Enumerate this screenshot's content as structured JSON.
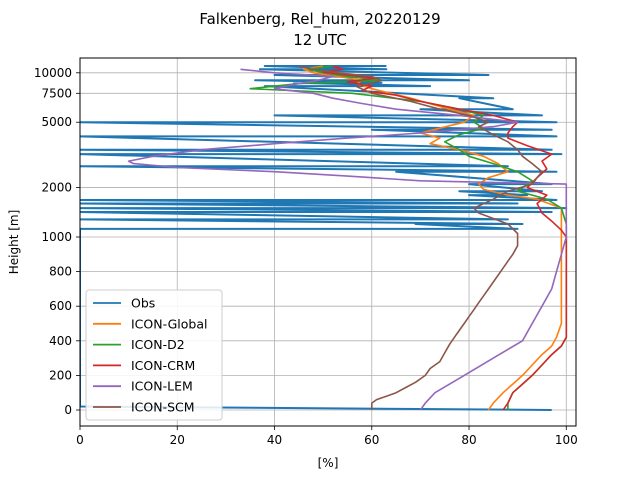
{
  "chart_data": {
    "type": "line",
    "title_line1": "Falkenberg, Rel_hum, 20220129",
    "title_line2": "12 UTC",
    "xlabel": "[%]",
    "ylabel": "Height [m]",
    "xlim": [
      0,
      102
    ],
    "x_ticks": [
      0,
      20,
      40,
      60,
      80,
      100
    ],
    "y_ticks_linear": [
      0,
      200,
      400,
      600,
      800,
      1000
    ],
    "y_ticks_upper": [
      2000,
      5000,
      7500,
      10000
    ],
    "grid": true,
    "legend_position": "lower-left",
    "series": [
      {
        "name": "Obs",
        "color": "#1f77b4",
        "points": [
          [
            97,
            0
          ],
          [
            0,
            20
          ],
          [
            0,
            1120
          ],
          [
            90,
            1120
          ],
          [
            69,
            1200
          ],
          [
            91,
            1200
          ],
          [
            0,
            1280
          ],
          [
            88,
            1280
          ],
          [
            0,
            1420
          ],
          [
            97,
            1420
          ],
          [
            0,
            1500
          ],
          [
            100,
            1500
          ],
          [
            0,
            1600
          ],
          [
            90,
            1600
          ],
          [
            0,
            1680
          ],
          [
            98,
            1680
          ],
          [
            80,
            1800
          ],
          [
            92,
            1800
          ],
          [
            78,
            1900
          ],
          [
            95,
            1900
          ],
          [
            80,
            2100
          ],
          [
            97,
            2100
          ],
          [
            65,
            2500
          ],
          [
            98,
            2500
          ],
          [
            0,
            2700
          ],
          [
            88,
            2700
          ],
          [
            0,
            3200
          ],
          [
            99,
            3200
          ],
          [
            0,
            3400
          ],
          [
            97,
            3400
          ],
          [
            0,
            4100
          ],
          [
            98,
            4100
          ],
          [
            60,
            4500
          ],
          [
            97,
            4500
          ],
          [
            0,
            5000
          ],
          [
            98,
            5000
          ],
          [
            40,
            5500
          ],
          [
            95,
            5500
          ],
          [
            70,
            6000
          ],
          [
            89,
            6000
          ],
          [
            78,
            7000
          ],
          [
            85,
            7000
          ],
          [
            38,
            8300
          ],
          [
            72,
            8300
          ],
          [
            44,
            8700
          ],
          [
            62,
            8700
          ],
          [
            36,
            9000
          ],
          [
            80,
            9000
          ],
          [
            40,
            9700
          ],
          [
            84,
            9700
          ],
          [
            37,
            10500
          ],
          [
            63,
            10500
          ],
          [
            38,
            11000
          ],
          [
            63,
            11000
          ]
        ]
      },
      {
        "name": "ICON-Global",
        "color": "#ff7f0e",
        "points": [
          [
            84,
            0
          ],
          [
            85,
            40
          ],
          [
            87,
            100
          ],
          [
            89,
            150
          ],
          [
            91,
            200
          ],
          [
            93,
            260
          ],
          [
            95,
            320
          ],
          [
            97,
            370
          ],
          [
            98,
            420
          ],
          [
            99,
            500
          ],
          [
            99,
            600
          ],
          [
            99,
            800
          ],
          [
            99,
            1000
          ],
          [
            99,
            1200
          ],
          [
            99,
            1500
          ],
          [
            94,
            1700
          ],
          [
            88,
            1800
          ],
          [
            83,
            1950
          ],
          [
            82,
            2100
          ],
          [
            84,
            2300
          ],
          [
            88,
            2500
          ],
          [
            86,
            2800
          ],
          [
            83,
            3100
          ],
          [
            78,
            3400
          ],
          [
            72,
            3700
          ],
          [
            74,
            4000
          ],
          [
            70,
            4300
          ],
          [
            74,
            4600
          ],
          [
            79,
            5000
          ],
          [
            81,
            5500
          ],
          [
            76,
            6000
          ],
          [
            68,
            7000
          ],
          [
            60,
            8000
          ],
          [
            57,
            8600
          ],
          [
            58,
            9000
          ],
          [
            53,
            9500
          ],
          [
            48,
            10000
          ],
          [
            46,
            10500
          ],
          [
            50,
            11000
          ]
        ]
      },
      {
        "name": "ICON-D2",
        "color": "#2ca02c",
        "points": [
          [
            88,
            0
          ],
          [
            88,
            40
          ],
          [
            89,
            100
          ],
          [
            91,
            150
          ],
          [
            93,
            200
          ],
          [
            95,
            260
          ],
          [
            97,
            320
          ],
          [
            99,
            370
          ],
          [
            100,
            420
          ],
          [
            100,
            500
          ],
          [
            100,
            600
          ],
          [
            100,
            800
          ],
          [
            100,
            1000
          ],
          [
            100,
            1200
          ],
          [
            99,
            1500
          ],
          [
            96,
            1700
          ],
          [
            93,
            1800
          ],
          [
            90,
            1900
          ],
          [
            91,
            2000
          ],
          [
            93,
            2200
          ],
          [
            90,
            2500
          ],
          [
            85,
            2800
          ],
          [
            80,
            3100
          ],
          [
            78,
            3400
          ],
          [
            75,
            3800
          ],
          [
            78,
            4200
          ],
          [
            83,
            4600
          ],
          [
            81,
            5000
          ],
          [
            83,
            5500
          ],
          [
            78,
            6000
          ],
          [
            70,
            6700
          ],
          [
            56,
            7500
          ],
          [
            35,
            8000
          ],
          [
            45,
            8600
          ],
          [
            62,
            9000
          ],
          [
            55,
            9500
          ],
          [
            50,
            10000
          ],
          [
            47,
            10500
          ],
          [
            52,
            11000
          ]
        ]
      },
      {
        "name": "ICON-CRM",
        "color": "#d62728",
        "points": [
          [
            87,
            0
          ],
          [
            88,
            40
          ],
          [
            89,
            100
          ],
          [
            91,
            150
          ],
          [
            93,
            200
          ],
          [
            95,
            260
          ],
          [
            97,
            320
          ],
          [
            99,
            370
          ],
          [
            100,
            420
          ],
          [
            100,
            500
          ],
          [
            100,
            600
          ],
          [
            100,
            800
          ],
          [
            100,
            1000
          ],
          [
            99,
            1100
          ],
          [
            97,
            1250
          ],
          [
            95,
            1400
          ],
          [
            94,
            1600
          ],
          [
            96,
            1800
          ],
          [
            92,
            2000
          ],
          [
            94,
            2300
          ],
          [
            96,
            2600
          ],
          [
            95,
            2900
          ],
          [
            97,
            3200
          ],
          [
            92,
            3600
          ],
          [
            88,
            4000
          ],
          [
            88,
            4300
          ],
          [
            89,
            4700
          ],
          [
            90,
            5000
          ],
          [
            85,
            5500
          ],
          [
            78,
            6000
          ],
          [
            70,
            6700
          ],
          [
            65,
            7300
          ],
          [
            58,
            7800
          ],
          [
            60,
            8300
          ],
          [
            55,
            8800
          ],
          [
            61,
            9300
          ],
          [
            55,
            9700
          ],
          [
            50,
            10100
          ],
          [
            54,
            10500
          ],
          [
            52,
            11000
          ]
        ]
      },
      {
        "name": "ICON-LEM",
        "color": "#9467bd",
        "points": [
          [
            70,
            0
          ],
          [
            71,
            40
          ],
          [
            73,
            100
          ],
          [
            76,
            150
          ],
          [
            79,
            200
          ],
          [
            82,
            250
          ],
          [
            85,
            300
          ],
          [
            88,
            350
          ],
          [
            91,
            400
          ],
          [
            93,
            500
          ],
          [
            95,
            600
          ],
          [
            97,
            700
          ],
          [
            98,
            800
          ],
          [
            99,
            900
          ],
          [
            100,
            1000
          ],
          [
            100,
            1200
          ],
          [
            100,
            1500
          ],
          [
            100,
            1800
          ],
          [
            100,
            2000
          ],
          [
            100,
            2100
          ],
          [
            70,
            2200
          ],
          [
            55,
            2350
          ],
          [
            40,
            2500
          ],
          [
            20,
            2650
          ],
          [
            11,
            2800
          ],
          [
            10,
            2900
          ],
          [
            15,
            3100
          ],
          [
            25,
            3400
          ],
          [
            40,
            3700
          ],
          [
            55,
            4000
          ],
          [
            70,
            4300
          ],
          [
            85,
            4700
          ],
          [
            90,
            5000
          ],
          [
            78,
            5500
          ],
          [
            65,
            6000
          ],
          [
            58,
            6500
          ],
          [
            52,
            7000
          ],
          [
            48,
            7500
          ],
          [
            40,
            8000
          ],
          [
            44,
            8500
          ],
          [
            49,
            9000
          ],
          [
            52,
            9500
          ],
          [
            40,
            10000
          ],
          [
            33,
            10500
          ]
        ]
      },
      {
        "name": "ICON-SCM",
        "color": "#8c564b",
        "points": [
          [
            60,
            0
          ],
          [
            60,
            20
          ],
          [
            60,
            40
          ],
          [
            61,
            60
          ],
          [
            63,
            80
          ],
          [
            65,
            100
          ],
          [
            67,
            130
          ],
          [
            69,
            160
          ],
          [
            71,
            200
          ],
          [
            72,
            240
          ],
          [
            74,
            280
          ],
          [
            75,
            330
          ],
          [
            76,
            380
          ],
          [
            77,
            420
          ],
          [
            78,
            460
          ],
          [
            79,
            500
          ],
          [
            80,
            540
          ],
          [
            81,
            580
          ],
          [
            82,
            620
          ],
          [
            83,
            660
          ],
          [
            84,
            700
          ],
          [
            85,
            740
          ],
          [
            86,
            780
          ],
          [
            87,
            820
          ],
          [
            88,
            860
          ],
          [
            89,
            900
          ],
          [
            90,
            950
          ],
          [
            90,
            1000
          ],
          [
            90,
            1050
          ],
          [
            88,
            1200
          ],
          [
            82,
            1400
          ],
          [
            81,
            1500
          ],
          [
            85,
            1700
          ],
          [
            88,
            1900
          ],
          [
            93,
            2100
          ],
          [
            94,
            2300
          ],
          [
            95,
            2500
          ],
          [
            93,
            2800
          ],
          [
            91,
            3100
          ],
          [
            90,
            3400
          ],
          [
            88,
            3800
          ],
          [
            85,
            4200
          ],
          [
            82,
            4700
          ],
          [
            84,
            5000
          ],
          [
            80,
            5500
          ],
          [
            74,
            6000
          ],
          [
            68,
            6700
          ],
          [
            60,
            7500
          ],
          [
            57,
            8200
          ],
          [
            62,
            9000
          ],
          [
            60,
            9500
          ],
          [
            53,
            10000
          ],
          [
            48,
            10500
          ],
          [
            45,
            11000
          ]
        ]
      }
    ]
  }
}
